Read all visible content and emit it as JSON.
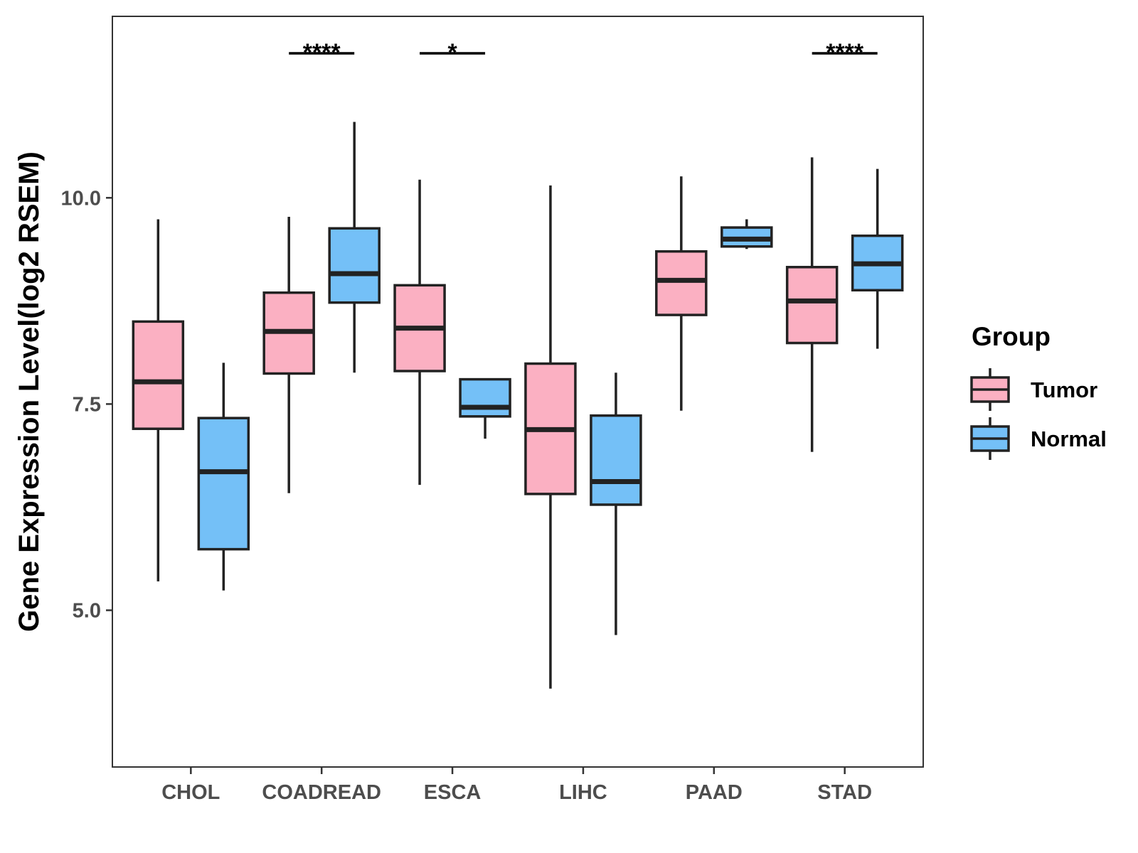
{
  "chart_data": {
    "type": "boxplot",
    "title": "",
    "xlabel": "",
    "ylabel": "Gene Expression Level(log2 RSEM)",
    "ylim": [
      3.1,
      12.2
    ],
    "yticks": [
      5.0,
      7.5,
      10.0
    ],
    "ytick_labels": [
      "5.0",
      "7.5",
      "10.0"
    ],
    "categories": [
      "CHOL",
      "COADREAD",
      "ESCA",
      "LIHC",
      "PAAD",
      "STAD"
    ],
    "series": [
      {
        "name": "Tumor",
        "color": "#FBB0C2",
        "boxes": [
          {
            "min": 5.35,
            "q1": 7.2,
            "median": 7.77,
            "q3": 8.5,
            "max": 9.74
          },
          {
            "min": 6.42,
            "q1": 7.87,
            "median": 8.38,
            "q3": 8.85,
            "max": 9.77
          },
          {
            "min": 6.52,
            "q1": 7.9,
            "median": 8.42,
            "q3": 8.94,
            "max": 10.22
          },
          {
            "min": 4.05,
            "q1": 6.41,
            "median": 7.19,
            "q3": 7.99,
            "max": 10.15
          },
          {
            "min": 7.42,
            "q1": 8.58,
            "median": 9.0,
            "q3": 9.35,
            "max": 10.26
          },
          {
            "min": 6.92,
            "q1": 8.24,
            "median": 8.75,
            "q3": 9.16,
            "max": 10.49
          }
        ]
      },
      {
        "name": "Normal",
        "color": "#74C0F7",
        "boxes": [
          {
            "min": 5.24,
            "q1": 5.74,
            "median": 6.68,
            "q3": 7.33,
            "max": 8.0
          },
          {
            "min": 7.88,
            "q1": 8.73,
            "median": 9.08,
            "q3": 9.63,
            "max": 10.92
          },
          {
            "min": 7.08,
            "q1": 7.35,
            "median": 7.46,
            "q3": 7.8,
            "max": 7.8
          },
          {
            "min": 4.7,
            "q1": 6.28,
            "median": 6.56,
            "q3": 7.36,
            "max": 7.88
          },
          {
            "min": 9.38,
            "q1": 9.41,
            "median": 9.5,
            "q3": 9.64,
            "max": 9.74
          },
          {
            "min": 8.17,
            "q1": 8.88,
            "median": 9.2,
            "q3": 9.54,
            "max": 10.35
          }
        ]
      }
    ],
    "significance": [
      {
        "category": "COADREAD",
        "label": "****"
      },
      {
        "category": "ESCA",
        "label": "*"
      },
      {
        "category": "STAD",
        "label": "****"
      }
    ],
    "legend": {
      "title": "Group",
      "position": "right",
      "labels": [
        "Tumor",
        "Normal"
      ]
    },
    "grid": false
  }
}
